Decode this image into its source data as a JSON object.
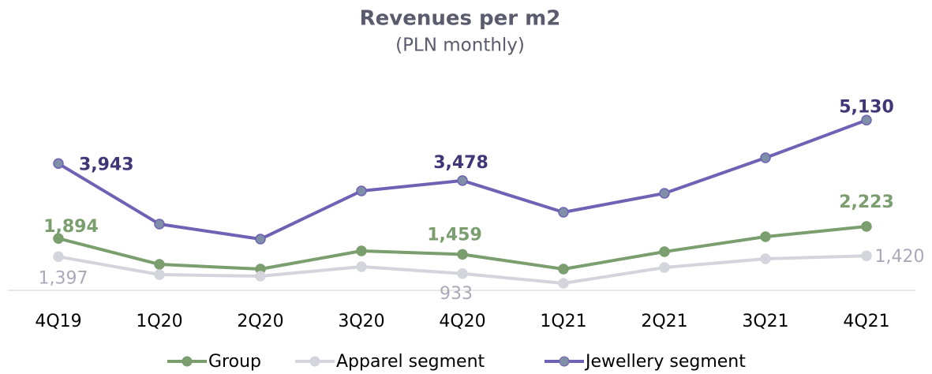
{
  "chart_data": {
    "type": "line",
    "title": "Revenues per m2",
    "subtitle": "(PLN monthly)",
    "categories": [
      "4Q19",
      "1Q20",
      "2Q20",
      "3Q20",
      "4Q20",
      "1Q21",
      "2Q21",
      "3Q21",
      "4Q21"
    ],
    "ylim": [
      475,
      5600
    ],
    "legend": "bottom",
    "series": [
      {
        "name": "Group",
        "color": "#7a9e6e",
        "values": [
          1894,
          1187,
          1057,
          1554,
          1459,
          1057,
          1532,
          1942,
          2223
        ],
        "value_labels": [
          "1,894",
          null,
          null,
          null,
          "1,459",
          null,
          null,
          null,
          "2,223"
        ]
      },
      {
        "name": "Apparel segment",
        "color": "#d4d4dc",
        "values": [
          1397,
          906,
          863,
          1122,
          933,
          669,
          1100,
          1338,
          1420
        ],
        "value_labels": [
          "1,397",
          null,
          null,
          null,
          "933",
          null,
          null,
          null,
          "1,420"
        ]
      },
      {
        "name": "Jewellery segment",
        "color": "#6f62b4",
        "values": [
          3943,
          2287,
          1877,
          3194,
          3478,
          2611,
          3129,
          4100,
          5130
        ],
        "value_labels": [
          "3,943",
          null,
          null,
          null,
          "3,478",
          null,
          null,
          null,
          "5,130"
        ]
      }
    ]
  }
}
